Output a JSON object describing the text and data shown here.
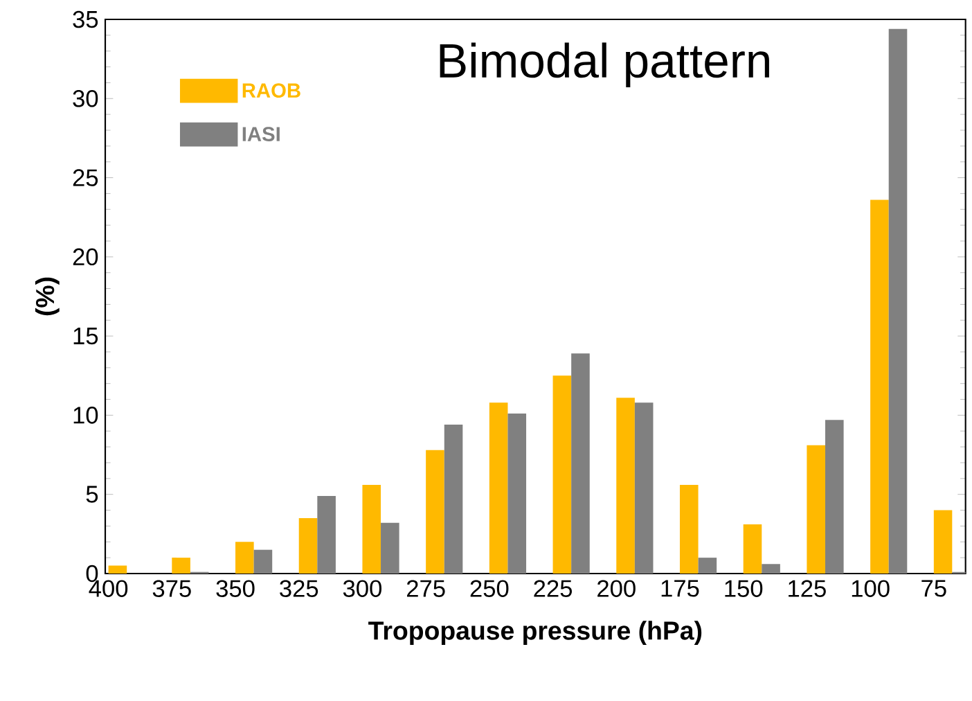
{
  "chart_data": {
    "type": "bar",
    "title": "Bimodal pattern",
    "xlabel": "Tropopause pressure (hPa)",
    "ylabel": "(%)",
    "categories": [
      "400",
      "375",
      "350",
      "325",
      "300",
      "275",
      "250",
      "225",
      "200",
      "175",
      "150",
      "125",
      "100",
      "75"
    ],
    "series": [
      {
        "name": "RAOB",
        "color": "#ffb900",
        "values": [
          0.5,
          1.0,
          2.0,
          3.5,
          5.6,
          7.8,
          10.8,
          12.5,
          11.1,
          5.6,
          3.1,
          8.1,
          23.6,
          4.0
        ]
      },
      {
        "name": "IASI",
        "color": "#808080",
        "values": [
          0,
          0.1,
          1.5,
          4.9,
          3.2,
          9.4,
          10.1,
          13.9,
          10.8,
          1.0,
          0.6,
          9.7,
          34.4,
          0.1
        ]
      }
    ],
    "ylim": [
      0,
      35
    ],
    "yticks": [
      0,
      5,
      10,
      15,
      20,
      25,
      30,
      35
    ],
    "legend": "top left",
    "grid": false
  }
}
